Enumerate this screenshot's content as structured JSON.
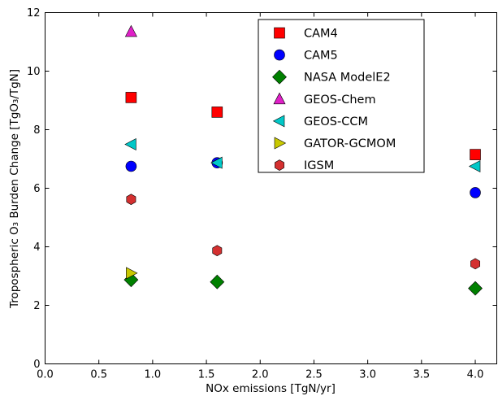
{
  "chart_data": {
    "type": "scatter",
    "title": "",
    "xlabel": "NOx emissions [TgN/yr]",
    "ylabel": "Tropospheric O₃ Burden Change [TgO₃/TgN]",
    "xlim": [
      0,
      4.2
    ],
    "ylim": [
      0,
      12
    ],
    "xticks": [
      "0.0",
      "0.5",
      "1.0",
      "1.5",
      "2.0",
      "2.5",
      "3.0",
      "3.5",
      "4.0"
    ],
    "yticks": [
      "0",
      "2",
      "4",
      "6",
      "8",
      "10",
      "12"
    ],
    "grid": false,
    "legend_position": "top-right",
    "series": [
      {
        "name": "CAM4",
        "marker": "square",
        "color": "#ff0000",
        "points": [
          [
            0.8,
            9.1
          ],
          [
            1.6,
            8.6
          ],
          [
            4.0,
            7.15
          ]
        ]
      },
      {
        "name": "CAM5",
        "marker": "circle",
        "color": "#0000ff",
        "points": [
          [
            0.8,
            6.75
          ],
          [
            1.6,
            6.87
          ],
          [
            4.0,
            5.85
          ]
        ]
      },
      {
        "name": "NASA ModelE2",
        "marker": "diamond",
        "color": "#008000",
        "points": [
          [
            0.8,
            2.87
          ],
          [
            1.6,
            2.8
          ],
          [
            4.0,
            2.58
          ]
        ]
      },
      {
        "name": "GEOS-Chem",
        "marker": "triangle-up",
        "color": "#e020c8",
        "points": [
          [
            0.8,
            11.35
          ]
        ]
      },
      {
        "name": "GEOS-CCM",
        "marker": "triangle-left",
        "color": "#00c8c8",
        "points": [
          [
            0.8,
            7.5
          ],
          [
            1.6,
            6.87
          ],
          [
            4.0,
            6.75
          ]
        ]
      },
      {
        "name": "GATOR-GCMOM",
        "marker": "triangle-right",
        "color": "#c8c800",
        "points": [
          [
            0.8,
            3.1
          ]
        ]
      },
      {
        "name": "IGSM",
        "marker": "hexagon",
        "color": "#d43030",
        "points": [
          [
            0.8,
            5.62
          ],
          [
            1.6,
            3.87
          ],
          [
            4.0,
            3.42
          ]
        ]
      }
    ]
  }
}
